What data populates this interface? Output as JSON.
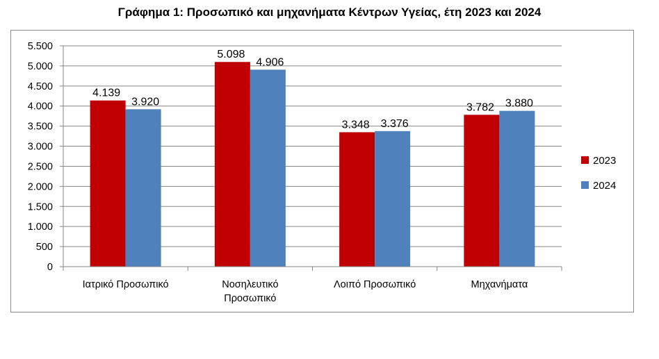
{
  "chart_data": {
    "type": "bar",
    "title": "Γράφημα 1: Προσωπικό και μηχανήματα Κέντρων Υγείας, έτη 2023 και 2024",
    "categories": [
      [
        "Ιατρικό Προσωπικό"
      ],
      [
        "Νοσηλευτικό",
        "Προσωπικό"
      ],
      [
        "Λοιπό Προσωπικό"
      ],
      [
        "Μηχανήματα"
      ]
    ],
    "series": [
      {
        "name": "2023",
        "color": "#C00000",
        "values": [
          4139,
          5098,
          3348,
          3782
        ],
        "labels": [
          "4.139",
          "5.098",
          "3.348",
          "3.782"
        ]
      },
      {
        "name": "2024",
        "color": "#4F81BD",
        "values": [
          3920,
          4906,
          3376,
          3880
        ],
        "labels": [
          "3.920",
          "4.906",
          "3.376",
          "3.880"
        ]
      }
    ],
    "ylim": [
      0,
      5500
    ],
    "yticks": [
      0,
      500,
      1000,
      1500,
      2000,
      2500,
      3000,
      3500,
      4000,
      4500,
      5000,
      5500
    ],
    "ytick_labels": [
      "0",
      "500",
      "1.000",
      "1.500",
      "2.000",
      "2.500",
      "3.000",
      "3.500",
      "4.000",
      "4.500",
      "5.000",
      "5.500"
    ],
    "grid": true,
    "legend_position": "right"
  }
}
